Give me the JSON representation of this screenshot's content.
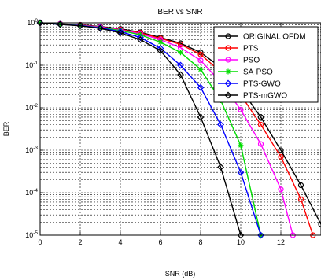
{
  "chart_data": {
    "type": "line",
    "title": "BER vs SNR",
    "xlabel": "SNR (dB)",
    "ylabel": "BER",
    "xlim": [
      0,
      14
    ],
    "ylim": [
      1e-05,
      1
    ],
    "y_scale": "log",
    "grid": true,
    "legend_position": "top-right",
    "x_ticks": [
      0,
      2,
      4,
      6,
      8,
      10,
      12
    ],
    "x_tick_labels": [
      "0",
      "2",
      "4",
      "6",
      "8",
      "10",
      "12"
    ],
    "y_ticks": [
      1,
      0.1,
      0.01,
      0.001,
      0.0001,
      1e-05
    ],
    "y_tick_labels": [
      {
        "base": "10",
        "exp": "0"
      },
      {
        "base": "10",
        "exp": "-1"
      },
      {
        "base": "10",
        "exp": "-2"
      },
      {
        "base": "10",
        "exp": "-3"
      },
      {
        "base": "10",
        "exp": "-4"
      },
      {
        "base": "10",
        "exp": "-5"
      }
    ],
    "series": [
      {
        "name": "ORIGINAL OFDM",
        "color": "#000000",
        "marker": "circle",
        "x": [
          0,
          1,
          2,
          3,
          4,
          5,
          6,
          7,
          8,
          9,
          10,
          11,
          12,
          13,
          14
        ],
        "y": [
          1,
          0.95,
          0.9,
          0.82,
          0.72,
          0.6,
          0.45,
          0.33,
          0.2,
          0.09,
          0.028,
          0.006,
          0.001,
          0.00015,
          1.8e-05
        ]
      },
      {
        "name": "PTS",
        "color": "#ff0000",
        "marker": "circle",
        "x": [
          0,
          1,
          2,
          3,
          4,
          5,
          6,
          7,
          8,
          9,
          10,
          11,
          12,
          13,
          13.6
        ],
        "y": [
          1,
          0.94,
          0.89,
          0.8,
          0.7,
          0.58,
          0.43,
          0.31,
          0.18,
          0.07,
          0.02,
          0.004,
          0.0007,
          7e-05,
          1e-05
        ]
      },
      {
        "name": "PSO",
        "color": "#ff00ff",
        "marker": "circle",
        "x": [
          0,
          1,
          2,
          3,
          4,
          5,
          6,
          7,
          8,
          9,
          10,
          11,
          12,
          12.6
        ],
        "y": [
          1,
          0.94,
          0.88,
          0.79,
          0.68,
          0.55,
          0.4,
          0.26,
          0.13,
          0.04,
          0.009,
          0.0014,
          0.00012,
          1e-05
        ]
      },
      {
        "name": "SA-PSO",
        "color": "#00dd00",
        "marker": "star",
        "x": [
          0,
          1,
          2,
          3,
          4,
          5,
          6,
          7,
          8,
          9,
          10,
          11
        ],
        "y": [
          1,
          0.93,
          0.87,
          0.77,
          0.66,
          0.52,
          0.35,
          0.2,
          0.08,
          0.015,
          0.0013,
          1e-05
        ]
      },
      {
        "name": "PTS-GWO",
        "color": "#0000ff",
        "marker": "diamond",
        "x": [
          0,
          1,
          2,
          3,
          4,
          5,
          6,
          7,
          8,
          9,
          10,
          11
        ],
        "y": [
          1,
          0.92,
          0.86,
          0.76,
          0.62,
          0.45,
          0.25,
          0.1,
          0.03,
          0.004,
          0.0003,
          1e-05
        ]
      },
      {
        "name": "PTS-mGWO",
        "color": "#000000",
        "marker": "diamond",
        "x": [
          0,
          1,
          2,
          3,
          4,
          5,
          6,
          7,
          8,
          9,
          10
        ],
        "y": [
          1,
          0.92,
          0.85,
          0.74,
          0.58,
          0.4,
          0.22,
          0.06,
          0.006,
          0.0004,
          1e-05
        ]
      }
    ]
  }
}
